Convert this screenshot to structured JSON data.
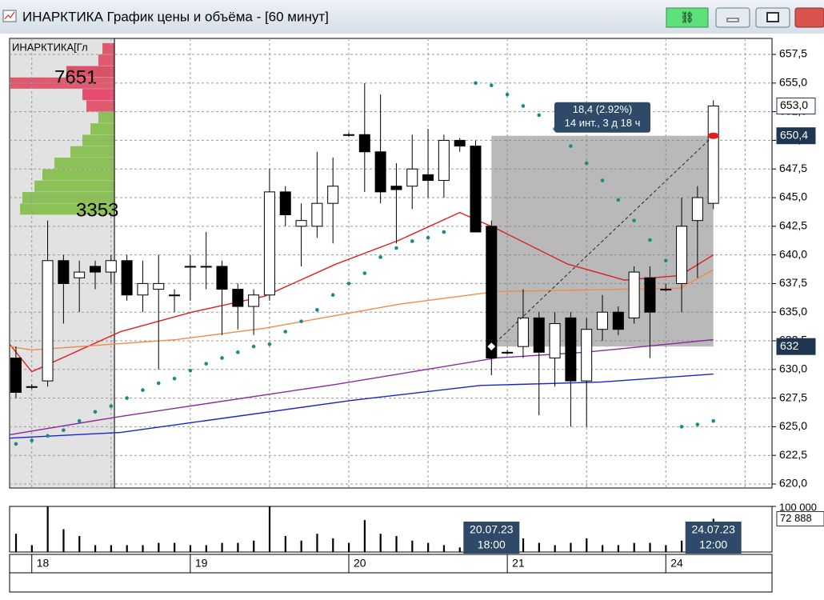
{
  "window": {
    "title": "ИНАРКТИКА График цены и объёма - [60 минут]"
  },
  "chart_data": [
    {
      "type": "candlestick",
      "open": [
        631,
        628.5,
        629,
        639.5,
        638,
        639,
        638.5,
        639.5,
        636.5,
        637,
        636.5,
        639,
        639,
        639,
        637,
        635.5,
        636.5,
        645.5,
        642.5,
        642.5,
        644.5,
        650.5,
        650.5,
        649,
        646,
        646,
        647,
        646.5,
        650,
        649.5,
        642.5,
        631.5,
        632,
        634.5,
        631,
        634.5,
        629,
        633.5,
        635,
        634.5,
        638,
        637,
        637.5,
        643,
        644.5
      ],
      "high": [
        632,
        628.7,
        643,
        640,
        639.5,
        639.5,
        640,
        640,
        639.5,
        640,
        637,
        640,
        642,
        639.5,
        637.5,
        637,
        647.5,
        646,
        644.5,
        649,
        648.5,
        650.7,
        655,
        654,
        648,
        650.5,
        651,
        650.5,
        650.2,
        650,
        643,
        631.7,
        637,
        635,
        635,
        635,
        634.5,
        636.5,
        635.5,
        639,
        639,
        637.5,
        645,
        646,
        653.5
      ],
      "low": [
        627.5,
        628.3,
        628.5,
        634,
        635,
        637,
        637.5,
        636,
        635,
        630,
        635,
        636,
        637,
        633,
        633.5,
        633,
        636,
        642.5,
        639,
        641.5,
        641,
        650.3,
        645.5,
        644.5,
        641,
        644,
        645,
        645,
        649,
        642,
        629.5,
        631.3,
        631,
        626,
        628.5,
        625,
        625,
        632.5,
        633,
        634,
        631,
        636.8,
        635,
        638,
        644
      ],
      "close": [
        628,
        628.5,
        639.5,
        637.5,
        638.5,
        638.5,
        639.5,
        636.5,
        637.5,
        637.5,
        636.5,
        639,
        639,
        637,
        635.5,
        636.5,
        645.5,
        643.5,
        643,
        644.5,
        646,
        650.5,
        649,
        645.5,
        645.7,
        647.5,
        646.5,
        650,
        649.5,
        642,
        631,
        631.5,
        634.5,
        631.5,
        634,
        629,
        633.5,
        635,
        633.5,
        638.5,
        635,
        637,
        642.5,
        645,
        653
      ],
      "up_color": "#ffffff",
      "down_color": "#000000",
      "lines": [
        {
          "color": "#e02020",
          "x": [
            -0.4,
            1,
            6.6,
            11.1,
            15.7,
            20.2,
            24.2,
            28,
            30.3,
            34.8,
            38.4,
            41.9,
            44
          ],
          "values": [
            632.2,
            629.8,
            633.3,
            635,
            636.4,
            639.2,
            641.3,
            643.7,
            642.3,
            639.2,
            637.8,
            638.2,
            640
          ]
        },
        {
          "color": "#f08a4a",
          "x": [
            -0.4,
            1,
            10.1,
            15.7,
            24.2,
            30.3,
            41.9,
            44
          ],
          "values": [
            632,
            631.7,
            632.6,
            633.6,
            635.7,
            636.8,
            637.1,
            638.7
          ]
        },
        {
          "color": "#8a2aa0",
          "x": [
            -0.4,
            6.6,
            20.2,
            30.3,
            35.9,
            44
          ],
          "values": [
            624.3,
            625.9,
            628.7,
            631,
            631.5,
            632.6
          ]
        },
        {
          "color": "#1a24c8",
          "x": [
            -0.4,
            6.6,
            21.2,
            29.3,
            36.9,
            44
          ],
          "values": [
            624,
            624.5,
            627.3,
            628.6,
            628.9,
            629.6
          ]
        }
      ],
      "sar": {
        "color": "#1a8a86",
        "values": [
          623.5,
          623.8,
          624.2,
          624.7,
          625.5,
          626.3,
          626.8,
          627.5,
          628.2,
          628.8,
          629.2,
          629.9,
          630.5,
          631,
          631.5,
          632,
          632.2,
          633.3,
          634.2,
          635.2,
          636.5,
          637.5,
          638.4,
          639.8,
          640.6,
          641.2,
          641.5,
          642,
          null,
          655,
          654.8,
          654,
          653,
          652.2,
          651,
          649.5,
          648,
          646.5,
          644.8,
          643,
          641.3,
          639.5,
          625,
          625.2,
          625.5
        ]
      },
      "xlim": [
        -0.4,
        47.7
      ],
      "ylim": [
        619.65,
        658.9
      ],
      "yticks": [
        {
          "value": 657.5,
          "label": "657,5"
        },
        {
          "value": 655,
          "label": "655,0"
        },
        {
          "value": 652.5,
          "label": "652,5"
        },
        {
          "value": 650,
          "label": "650,0"
        },
        {
          "value": 647.5,
          "label": "647,5"
        },
        {
          "value": 645,
          "label": "645,0"
        },
        {
          "value": 642.5,
          "label": "642,5"
        },
        {
          "value": 640,
          "label": "640,0"
        },
        {
          "value": 637.5,
          "label": "637,5"
        },
        {
          "value": 635,
          "label": "635,0"
        },
        {
          "value": 632.5,
          "label": "632,5"
        },
        {
          "value": 630,
          "label": "630,0"
        },
        {
          "value": 627.5,
          "label": "627,5"
        },
        {
          "value": 625,
          "label": "625,0"
        },
        {
          "value": 622.5,
          "label": "622,5"
        },
        {
          "value": 620,
          "label": "620,0"
        }
      ],
      "xticks": [
        {
          "value": 1,
          "label": "18"
        },
        {
          "value": 11,
          "label": "19"
        },
        {
          "value": 21,
          "label": "20"
        },
        {
          "value": 31,
          "label": "21"
        },
        {
          "value": 41,
          "label": "24"
        }
      ],
      "xgrid": [
        1,
        6,
        11,
        16,
        21,
        26,
        31,
        36,
        41,
        46
      ],
      "grid": true,
      "price_markers": [
        {
          "value": 653,
          "label": "653,0"
        },
        {
          "value": 650.4,
          "label": "650,4"
        },
        {
          "value": 632,
          "label": "632"
        }
      ],
      "measure": {
        "from_x": 30,
        "to_x": 44,
        "from_value": 632,
        "to_value": 650.4,
        "label": "18,4 (2.92%)",
        "sublabel": "14 инт., 3 д 18 ч"
      },
      "profile": {
        "title": "ИНАРКТИКА[Гл",
        "levels": [
          658,
          657,
          656,
          655,
          654,
          653,
          652,
          651,
          650,
          649,
          648,
          647,
          646,
          645,
          644
        ],
        "values": [
          880,
          1180,
          3530,
          7651,
          2350,
          2060,
          1180,
          1760,
          2350,
          3240,
          4410,
          5300,
          5880,
          6770,
          6940
        ],
        "colors": [
          "#e0415a",
          "#e0415a",
          "#d63a55",
          "#e0415a",
          "#e8305a",
          "#e0415a",
          "#7dbb3e",
          "#7dbb3e",
          "#7dbb3e",
          "#7dbb3e",
          "#7dbb3e",
          "#7dbb3e",
          "#7dbb3e",
          "#7dbb3e",
          "#7dbb3e"
        ],
        "labels": [
          "7651",
          "3353"
        ]
      }
    },
    {
      "type": "bar",
      "values": [
        40000,
        15000,
        100000,
        50000,
        35000,
        15000,
        15000,
        15000,
        15000,
        20000,
        20000,
        15000,
        15000,
        20000,
        20000,
        25000,
        100000,
        35000,
        25000,
        40000,
        30000,
        20000,
        70000,
        40000,
        35000,
        25000,
        20000,
        15000,
        10000,
        10000,
        25000,
        15000,
        30000,
        20000,
        15000,
        20000,
        30000,
        15000,
        15000,
        20000,
        20000,
        15000,
        25000,
        35000,
        72888
      ],
      "color": "#000000",
      "ylim": [
        0,
        100000
      ],
      "yticks": [
        {
          "value": 100000,
          "label": "100 000"
        }
      ],
      "badge": {
        "value": 72888,
        "label": "72 888"
      },
      "cursors": [
        {
          "x": 30,
          "label": "20.07.23",
          "sublabel": "18:00"
        },
        {
          "x": 44,
          "label": "24.07.23",
          "sublabel": "12:00"
        }
      ]
    }
  ]
}
